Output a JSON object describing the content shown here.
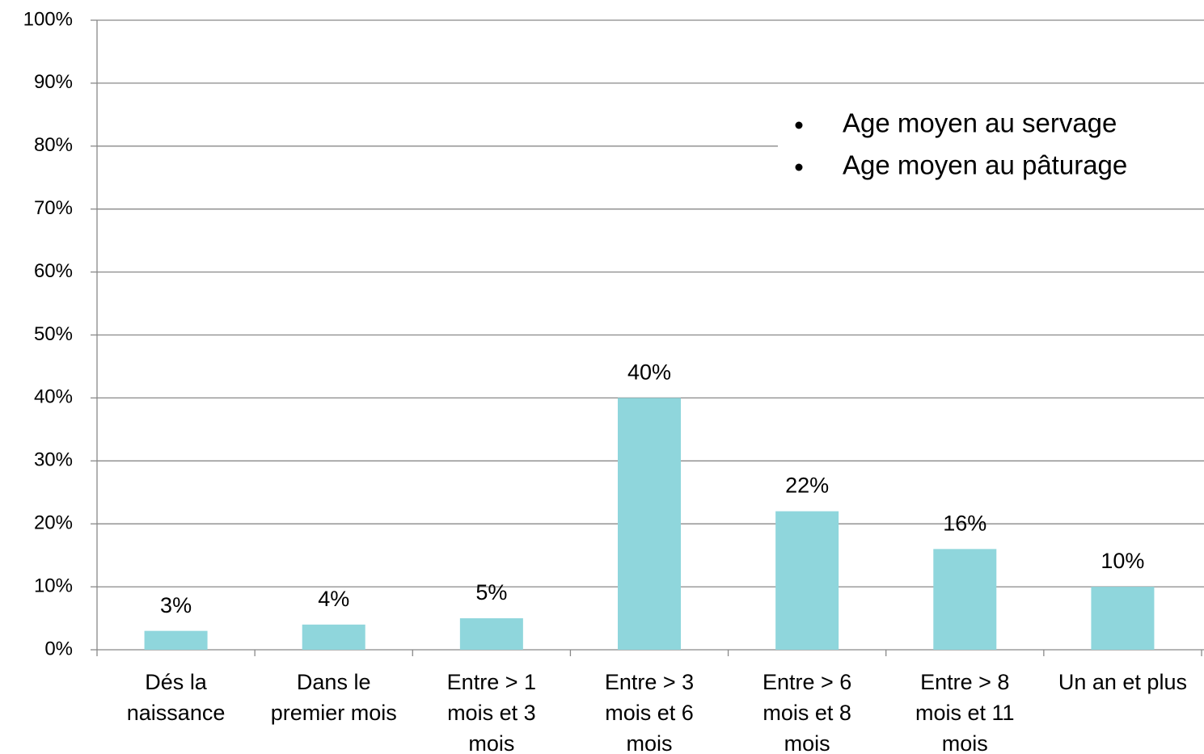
{
  "chart_data": {
    "type": "bar",
    "categories": [
      "Dés la\nnaissance",
      "Dans le\npremier mois",
      "Entre > 1\nmois et 3\nmois",
      "Entre > 3\nmois et 6\nmois",
      "Entre > 6\nmois et 8\nmois",
      "Entre > 8\nmois et 11\nmois",
      "Un an et plus"
    ],
    "values": [
      3,
      4,
      5,
      40,
      22,
      16,
      10
    ],
    "value_labels": [
      "3%",
      "4%",
      "5%",
      "40%",
      "22%",
      "16%",
      "10%"
    ],
    "color": "#8fd6dc",
    "ylim": [
      0,
      100
    ],
    "yticks": [
      {
        "value": 0,
        "label": "0%"
      },
      {
        "value": 10,
        "label": "10%"
      },
      {
        "value": 20,
        "label": "20%"
      },
      {
        "value": 30,
        "label": "30%"
      },
      {
        "value": 40,
        "label": "40%"
      },
      {
        "value": 50,
        "label": "50%"
      },
      {
        "value": 60,
        "label": "60%"
      },
      {
        "value": 70,
        "label": "70%"
      },
      {
        "value": 80,
        "label": "80%"
      },
      {
        "value": 90,
        "label": "90%"
      },
      {
        "value": 100,
        "label": "100%"
      }
    ],
    "grid": true,
    "annotations": [
      "Age moyen au servage",
      "Age moyen au pâturage"
    ]
  }
}
